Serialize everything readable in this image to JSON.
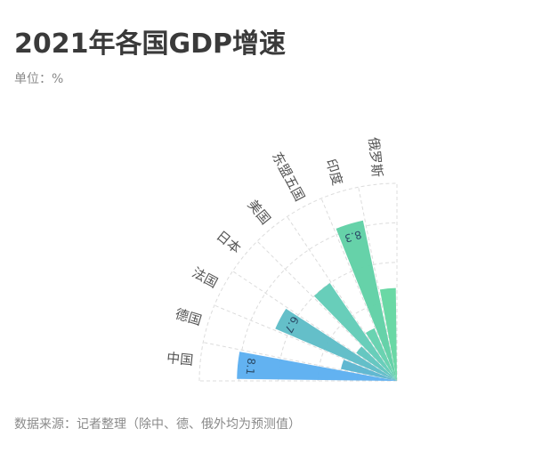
{
  "header": {
    "title": "2021年各国GDP增速",
    "unit": "单位：%"
  },
  "footer": {
    "source": "数据来源：记者整理（除中、德、俄外均为预测值）"
  },
  "colors": {
    "china": "#5aaef0",
    "germany": "#58b4cf",
    "france": "#5cbcc6",
    "japan": "#5ec4be",
    "usa": "#60cbb6",
    "asean": "#62d1ad",
    "india": "#5ed0a4",
    "russia": "#62d6a0",
    "grid": "#dcdcdc",
    "label": "#555555",
    "value_label": "#2a4a66"
  },
  "chart_data": {
    "type": "bar",
    "layout": "radial-quarter",
    "title": "2021年各国GDP增速",
    "unit": "%",
    "categories": [
      "中国",
      "德国",
      "法国",
      "日本",
      "美国",
      "东盟五国",
      "印度",
      "俄罗斯"
    ],
    "values": [
      8.1,
      2.9,
      6.7,
      2.5,
      6.0,
      2.9,
      8.3,
      4.7
    ],
    "data_labels": [
      "8.1",
      "",
      "6.7",
      "",
      "",
      "",
      "8.3",
      ""
    ],
    "ylim": [
      0,
      10
    ],
    "grid": true
  }
}
